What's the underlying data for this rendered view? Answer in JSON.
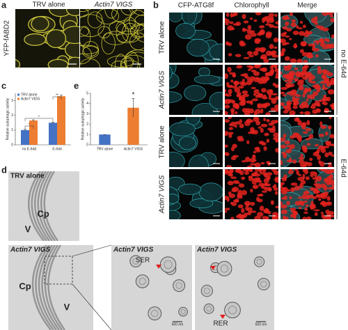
{
  "panel_labels": [
    "a",
    "b",
    "c",
    "d",
    "e"
  ],
  "panel_a": {
    "columns": [
      "TRV alone",
      "Actin7 VIGS"
    ],
    "row_label": "YFP-fABD2"
  },
  "panel_b": {
    "columns": [
      "CFP-ATG8f",
      "Chlorophyll",
      "Merge"
    ],
    "rows": [
      "TRV alone",
      "Actin7 VIGS",
      "TRV alone",
      "Actin7 VIGS"
    ],
    "groups": [
      "no E-64d",
      "E-64d"
    ]
  },
  "panel_d": {
    "titles": [
      "TRV alone",
      "Actin7 VIGS",
      "Actin7 VIGS",
      "Actin7 VIGS"
    ],
    "labels": [
      "Cp",
      "V",
      "Cp",
      "V",
      "SER",
      "RER"
    ],
    "scale_bars": [
      "500 nm",
      "500 nm"
    ]
  },
  "chart_data": [
    {
      "type": "bar",
      "y_label": "Relative autophagic activity",
      "categories": [
        "no E-64d",
        "E-64d"
      ],
      "series": [
        {
          "name": "TRV alone",
          "color": "#4472c4",
          "values": [
            1,
            1.5
          ],
          "errors": [
            0.05,
            0.05
          ]
        },
        {
          "name": "Actin7 VIGS",
          "color": "#ed7d31",
          "values": [
            1.65,
            3.3
          ],
          "errors": [
            0.05,
            0.08
          ]
        }
      ],
      "ylim": [
        0,
        3.5
      ],
      "yticks": [
        0,
        1,
        2,
        3
      ],
      "annotations": [
        "*",
        "*",
        "**"
      ]
    },
    {
      "type": "bar",
      "y_label": "Relative autophagic activity",
      "categories": [
        "TRV alone",
        "Actin7 VIGS"
      ],
      "colors": [
        "#4472c4",
        "#ed7d31"
      ],
      "values": [
        1,
        3.6
      ],
      "errors": [
        0,
        0.9
      ],
      "ylim": [
        0,
        5
      ],
      "yticks": [
        0,
        1,
        2,
        3,
        4,
        5
      ],
      "annotations": [
        "*"
      ]
    }
  ]
}
